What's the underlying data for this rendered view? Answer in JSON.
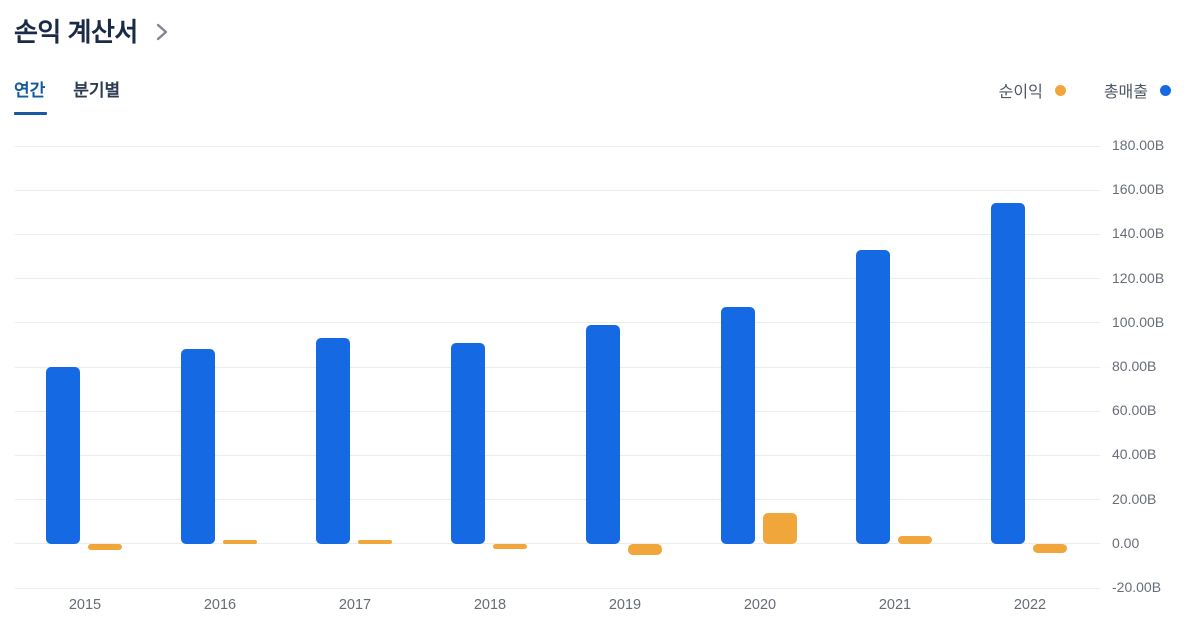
{
  "header": {
    "title": "손익 계산서",
    "chevron_icon": "chevron-right"
  },
  "tabs": [
    {
      "id": "annual",
      "label": "연간",
      "active": true
    },
    {
      "id": "quarterly",
      "label": "분기별",
      "active": false
    }
  ],
  "legend": [
    {
      "label": "순이익",
      "color": "#f0a63b"
    },
    {
      "label": "총매출",
      "color": "#1569e2"
    }
  ],
  "colors": {
    "revenue": "#1569e2",
    "net_income": "#f0a63b",
    "active_tab": "#15599e",
    "gridline": "#ebecee"
  },
  "chart_data": {
    "type": "bar",
    "categories": [
      "2015",
      "2016",
      "2017",
      "2018",
      "2019",
      "2020",
      "2021",
      "2022"
    ],
    "series": [
      {
        "name": "총매출",
        "color": "#1569e2",
        "values": [
          80,
          88,
          93,
          91,
          99,
          107,
          133,
          154
        ]
      },
      {
        "name": "순이익",
        "color": "#f0a63b",
        "values": [
          -3,
          1.5,
          1,
          -2.5,
          -5,
          14,
          3.5,
          -4
        ]
      }
    ],
    "title": "손익 계산서",
    "xlabel": "",
    "ylabel": "",
    "unit": "B",
    "ylim": [
      -20,
      180
    ],
    "y_tick_values": [
      180,
      160,
      140,
      120,
      100,
      80,
      60,
      40,
      20,
      0,
      -20
    ],
    "y_tick_labels": [
      "180.00B",
      "160.00B",
      "140.00B",
      "120.00B",
      "100.00B",
      "80.00B",
      "60.00B",
      "40.00B",
      "20.00B",
      "0.00",
      "-20.00B"
    ],
    "grid": true,
    "legend_position": "top-right",
    "y_axis_position": "right"
  }
}
